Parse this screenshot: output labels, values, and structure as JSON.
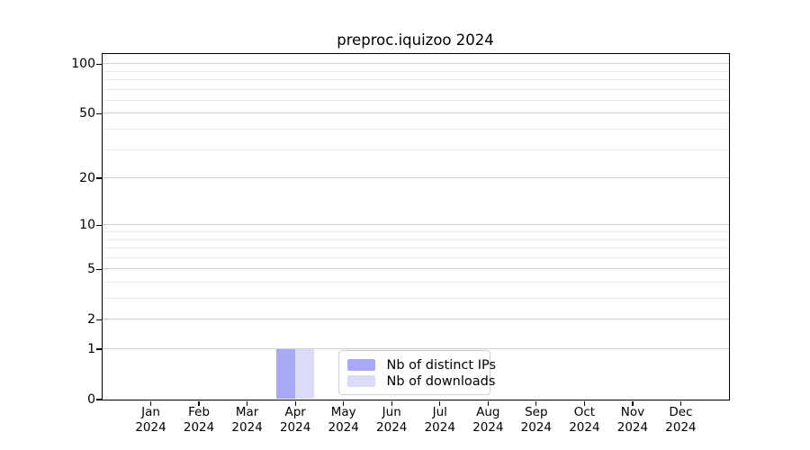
{
  "chart_data": {
    "type": "bar",
    "title": "preproc.iquizoo 2024",
    "categories": [
      "Jan",
      "Feb",
      "Mar",
      "Apr",
      "May",
      "Jun",
      "Jul",
      "Aug",
      "Sep",
      "Oct",
      "Nov",
      "Dec"
    ],
    "category_year": "2024",
    "series": [
      {
        "name": "Nb of distinct IPs",
        "color": "#a9a9f3",
        "values": [
          0,
          0,
          0,
          1,
          0,
          0,
          0,
          0,
          0,
          0,
          0,
          0
        ]
      },
      {
        "name": "Nb of downloads",
        "color": "#dbdbf8",
        "values": [
          0,
          0,
          0,
          1,
          0,
          0,
          0,
          0,
          0,
          0,
          0,
          0
        ]
      }
    ],
    "xlabel": "",
    "ylabel": "",
    "y_axis": {
      "scale": "log10(1+v)",
      "max": 115,
      "major_ticks": [
        {
          "value": 0,
          "label": "0"
        },
        {
          "value": 1,
          "label": "1"
        },
        {
          "value": 2,
          "label": "2"
        },
        {
          "value": 5,
          "label": "5"
        },
        {
          "value": 10,
          "label": "10"
        },
        {
          "value": 20,
          "label": "20"
        },
        {
          "value": 50,
          "label": "50"
        },
        {
          "value": 100,
          "label": "100"
        }
      ],
      "minor_ticks": [
        3,
        4,
        6,
        7,
        8,
        9,
        30,
        40,
        60,
        70,
        80,
        90
      ]
    },
    "legend": {
      "position": "lower center"
    },
    "grid": {
      "major_color": "#cfcfcf",
      "minor_color": "#ebebeb"
    },
    "colors": {
      "axis": "#000000",
      "text": "#000000",
      "legend_border": "#d0d0d0"
    }
  }
}
